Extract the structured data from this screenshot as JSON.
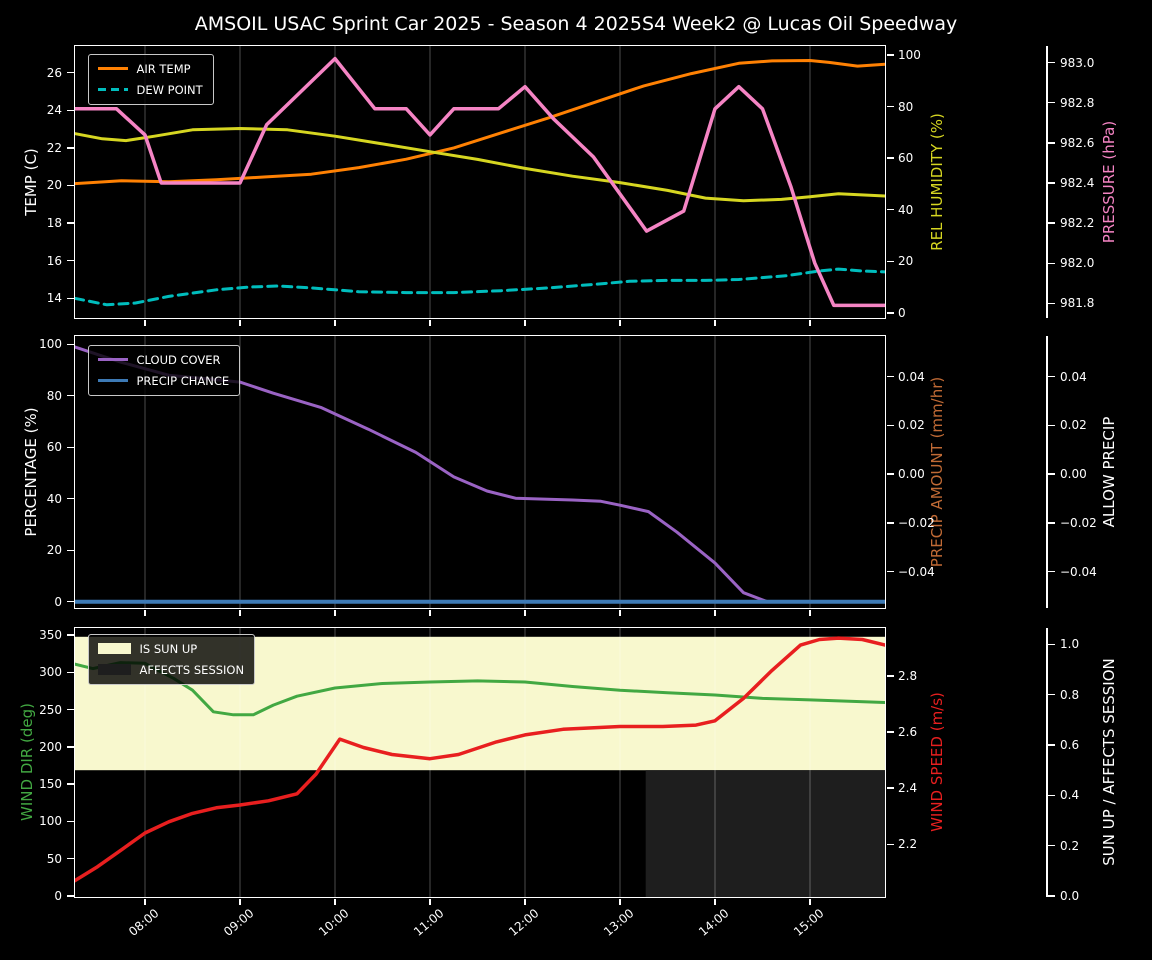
{
  "title": "AMSOIL USAC Sprint Car 2025 - Season 4 2025S4 Week2 @ Lucas Oil Speedway",
  "colors": {
    "background": "#000000",
    "foreground": "#ffffff",
    "grid": "rgba(255,255,255,0.25)",
    "sun_band": "#f8f8ce",
    "affects_region": "#1e1e1e"
  },
  "x_axis": {
    "range_hours": [
      7.263,
      15.789
    ],
    "tick_hours": [
      8,
      9,
      10,
      11,
      12,
      13,
      14,
      15
    ],
    "tick_labels": [
      "08:00",
      "09:00",
      "10:00",
      "11:00",
      "12:00",
      "13:00",
      "14:00",
      "15:00"
    ]
  },
  "chart_data": [
    {
      "type": "line",
      "panel": "temperature",
      "left_axis": {
        "label": "TEMP (C)",
        "color": "#ffffff",
        "range": [
          12.95,
          27.42
        ],
        "tick_values": [
          14,
          16,
          18,
          20,
          22,
          24,
          26
        ],
        "tick_labels": [
          "14",
          "16",
          "18",
          "20",
          "22",
          "24",
          "26"
        ]
      },
      "right_axes": [
        {
          "label": "REL HUMIDITY (%)",
          "color": "#d6d621",
          "range": [
            -2.01,
            103.49
          ],
          "tick_values": [
            0,
            20,
            40,
            60,
            80,
            100
          ],
          "tick_labels": [
            "0",
            "20",
            "40",
            "60",
            "80",
            "100"
          ]
        },
        {
          "label": "PRESSURE (hPa)",
          "color": "#f584c4",
          "range": [
            981.727,
            983.083
          ],
          "tick_values": [
            981.8,
            982.0,
            982.2,
            982.4,
            982.6,
            982.8,
            983.0
          ],
          "tick_labels": [
            "981.8",
            "982.0",
            "982.2",
            "982.4",
            "982.6",
            "982.8",
            "983.0"
          ]
        }
      ],
      "series": [
        {
          "name": "AIR TEMP",
          "axis": "left",
          "color": "#ff8103",
          "style": "solid",
          "width": 3,
          "x": [
            7.26,
            7.75,
            8.25,
            8.75,
            9.25,
            9.75,
            10.25,
            10.75,
            11.25,
            11.75,
            12.25,
            12.75,
            13.25,
            13.75,
            14.25,
            14.6,
            15.0,
            15.2,
            15.5,
            15.79
          ],
          "y": [
            20.1,
            20.25,
            20.2,
            20.3,
            20.45,
            20.6,
            20.95,
            21.4,
            22.0,
            22.8,
            23.6,
            24.45,
            25.3,
            25.95,
            26.5,
            26.63,
            26.65,
            26.55,
            26.35,
            26.45
          ]
        },
        {
          "name": "DEW POINT",
          "axis": "left",
          "color": "#00bdbd",
          "style": "dashed",
          "width": 3,
          "x": [
            7.26,
            7.6,
            7.9,
            8.25,
            8.75,
            9.1,
            9.4,
            9.75,
            10.25,
            10.75,
            11.25,
            11.75,
            12.25,
            12.75,
            13.1,
            13.5,
            13.9,
            14.25,
            14.75,
            15.1,
            15.3,
            15.55,
            15.79
          ],
          "y": [
            14.0,
            13.65,
            13.75,
            14.1,
            14.45,
            14.6,
            14.65,
            14.55,
            14.35,
            14.3,
            14.3,
            14.4,
            14.55,
            14.75,
            14.9,
            14.95,
            14.95,
            15.0,
            15.2,
            15.45,
            15.55,
            15.45,
            15.4
          ]
        },
        {
          "name": "REL HUMIDITY",
          "axis": "right1",
          "color": "#d6d621",
          "style": "solid",
          "width": 3,
          "x": [
            7.26,
            7.55,
            7.8,
            8.1,
            8.5,
            9.0,
            9.5,
            10.0,
            10.5,
            11.0,
            11.5,
            12.0,
            12.5,
            13.0,
            13.5,
            13.9,
            14.3,
            14.7,
            15.0,
            15.3,
            15.79
          ],
          "y": [
            69.5,
            67.5,
            66.8,
            68.5,
            71.0,
            71.5,
            71.0,
            68.5,
            65.5,
            62.5,
            59.5,
            56.0,
            53.0,
            50.5,
            47.5,
            44.5,
            43.5,
            44.0,
            45.0,
            46.2,
            45.3
          ]
        },
        {
          "name": "PRESSURE",
          "axis": "right2",
          "color": "#f584c4",
          "style": "solid",
          "width": 3.5,
          "x": [
            7.26,
            7.7,
            8.0,
            8.17,
            9.0,
            9.28,
            10.0,
            10.42,
            10.75,
            11.0,
            11.25,
            11.72,
            12.0,
            12.3,
            12.72,
            13.28,
            13.67,
            14.0,
            14.25,
            14.5,
            14.8,
            15.05,
            15.25,
            15.79
          ],
          "y": [
            982.77,
            982.77,
            982.64,
            982.4,
            982.4,
            982.69,
            983.02,
            982.77,
            982.77,
            982.64,
            982.77,
            982.77,
            982.88,
            982.72,
            982.53,
            982.16,
            982.26,
            982.77,
            982.88,
            982.77,
            982.38,
            982.0,
            981.79,
            981.79
          ]
        }
      ],
      "legend": [
        "AIR TEMP",
        "DEW POINT"
      ]
    },
    {
      "type": "line",
      "panel": "precipitation",
      "left_axis": {
        "label": "PERCENTAGE (%)",
        "color": "#ffffff",
        "range": [
          -2.45,
          103.22
        ],
        "tick_values": [
          0,
          20,
          40,
          60,
          80,
          100
        ],
        "tick_labels": [
          "0",
          "20",
          "40",
          "60",
          "80",
          "100"
        ]
      },
      "right_axes": [
        {
          "label": "PRECIP AMOUNT (mm/hr)",
          "color": "#c06a35",
          "range": [
            -0.0549,
            0.0567
          ],
          "tick_values": [
            0.04,
            0.02,
            0,
            -0.02,
            -0.04
          ],
          "tick_labels": [
            "0.04",
            "0.02",
            "0.00",
            "−0.02",
            "−0.04"
          ]
        },
        {
          "label": "ALLOW PRECIP",
          "color": "#ffffff",
          "range": [
            -0.0549,
            0.0567
          ],
          "tick_values": [
            0.04,
            0.02,
            0,
            -0.02,
            -0.04
          ],
          "tick_labels": [
            "0.04",
            "0.02",
            "0.00",
            "−0.02",
            "−0.04"
          ]
        }
      ],
      "series": [
        {
          "name": "CLOUD COVER",
          "axis": "left",
          "color": "#9a63c4",
          "style": "solid",
          "width": 3,
          "x": [
            7.26,
            7.75,
            8.25,
            8.75,
            9.0,
            9.35,
            9.85,
            10.35,
            10.85,
            11.25,
            11.6,
            11.9,
            12.5,
            12.8,
            13.0,
            13.3,
            13.6,
            14.0,
            14.3,
            14.55,
            15.0,
            15.79
          ],
          "y": [
            99,
            93,
            88,
            86.2,
            85.3,
            81,
            75.5,
            67,
            58,
            48.5,
            43,
            40.2,
            39.5,
            39,
            37.5,
            35,
            27,
            15,
            3.5,
            0,
            0,
            0
          ]
        },
        {
          "name": "PRECIP CHANCE",
          "axis": "left",
          "color": "#3d7ab5",
          "style": "solid",
          "width": 4,
          "x": [
            7.26,
            15.79
          ],
          "y": [
            0,
            0
          ]
        }
      ],
      "legend": [
        "CLOUD COVER",
        "PRECIP CHANCE"
      ]
    },
    {
      "type": "line",
      "panel": "wind",
      "left_axis": {
        "label": "WIND DIR (deg)",
        "color": "#42a842",
        "range": [
          -1.3,
          359.4
        ],
        "tick_values": [
          0,
          50,
          100,
          150,
          200,
          250,
          300,
          350
        ],
        "tick_labels": [
          "0",
          "50",
          "100",
          "150",
          "200",
          "250",
          "300",
          "350"
        ]
      },
      "right_axes": [
        {
          "label": "WIND SPEED (m/s)",
          "color": "#e81f1f",
          "range": [
            2.012,
            2.971
          ],
          "tick_values": [
            2.2,
            2.4,
            2.6,
            2.8
          ],
          "tick_labels": [
            "2.2",
            "2.4",
            "2.6",
            "2.8"
          ]
        },
        {
          "label": "SUN UP / AFFECTS SESSION",
          "color": "#ffffff",
          "range": [
            -0.004,
            1.065
          ],
          "tick_values": [
            0,
            0.2,
            0.4,
            0.6,
            0.8,
            1.0
          ],
          "tick_labels": [
            "0.0",
            "0.2",
            "0.4",
            "0.6",
            "0.8",
            "1.0"
          ]
        }
      ],
      "bands": [
        {
          "name": "IS SUN UP",
          "axis": "right2",
          "color": "#f8f8ce",
          "x": [
            7.263,
            15.789
          ],
          "v0": 0.5,
          "v1": 1.03
        },
        {
          "name": "AFFECTS SESSION",
          "axis": "right2",
          "color": "#1e1e1e",
          "x": [
            13.27,
            15.789
          ],
          "v0": -0.004,
          "v1": 0.5
        }
      ],
      "series": [
        {
          "name": "WIND DIR",
          "axis": "left",
          "color": "#42a842",
          "style": "solid",
          "width": 3,
          "x": [
            7.26,
            7.45,
            7.74,
            8.0,
            8.1,
            8.3,
            8.5,
            8.72,
            8.93,
            9.14,
            9.35,
            9.6,
            10.0,
            10.5,
            11.0,
            11.5,
            12.0,
            12.5,
            13.0,
            13.5,
            14.0,
            14.5,
            15.0,
            15.79
          ],
          "y": [
            311,
            305,
            313,
            312,
            305,
            292,
            276,
            247,
            243,
            243,
            256,
            268,
            279,
            285,
            287,
            288.5,
            287,
            281,
            276,
            272.5,
            269.5,
            265,
            263,
            259.5
          ]
        },
        {
          "name": "WIND SPEED",
          "axis": "right1",
          "color": "#e81f1f",
          "style": "solid",
          "width": 3.5,
          "x": [
            7.26,
            7.5,
            7.75,
            8.0,
            8.25,
            8.5,
            8.75,
            9.0,
            9.3,
            9.6,
            9.8,
            10.05,
            10.3,
            10.6,
            11.0,
            11.3,
            11.7,
            12.0,
            12.4,
            12.7,
            13.0,
            13.45,
            13.8,
            14.0,
            14.3,
            14.6,
            14.9,
            15.1,
            15.3,
            15.55,
            15.79
          ],
          "y": [
            2.07,
            2.12,
            2.18,
            2.24,
            2.28,
            2.31,
            2.33,
            2.34,
            2.355,
            2.38,
            2.45,
            2.575,
            2.545,
            2.52,
            2.505,
            2.52,
            2.565,
            2.59,
            2.61,
            2.615,
            2.62,
            2.62,
            2.625,
            2.64,
            2.72,
            2.82,
            2.91,
            2.93,
            2.935,
            2.93,
            2.91
          ]
        }
      ],
      "legend": [
        "IS SUN UP",
        "AFFECTS SESSION"
      ]
    }
  ]
}
